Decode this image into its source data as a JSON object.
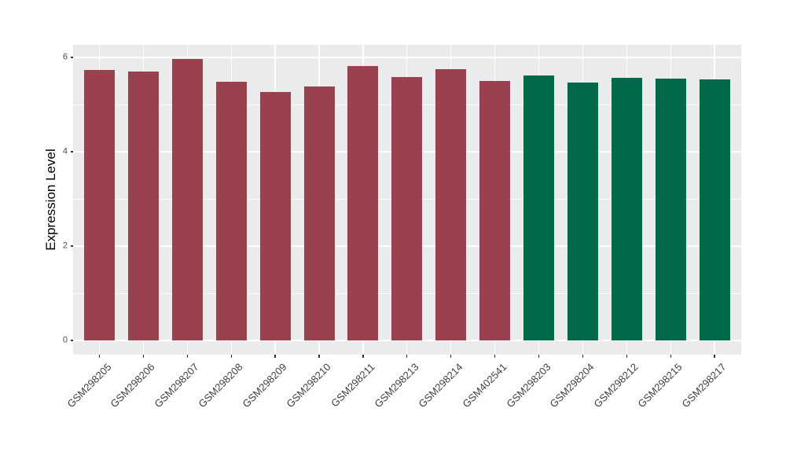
{
  "figure": {
    "background": "#FFFFFF"
  },
  "chart_data": {
    "type": "bar",
    "title": "",
    "xlabel": "",
    "ylabel": "Expression Level",
    "ylim": [
      0,
      6.27
    ],
    "yticks": [
      0,
      2,
      4,
      6
    ],
    "minor_yticks": [
      1,
      3,
      5
    ],
    "grid": true,
    "legend_position": "none",
    "panel_background": "#EBEBEB",
    "gridline_color": "#FFFFFF",
    "axis_text_color": "#4D4D4D",
    "axis_title_color": "#000000",
    "tick_mark_color": "#333333",
    "group_colors": {
      "maroon_group": "#9A4150",
      "green_group": "#016849"
    },
    "categories": [
      "GSM298205",
      "GSM298206",
      "GSM298207",
      "GSM298208",
      "GSM298209",
      "GSM298210",
      "GSM298211",
      "GSM298213",
      "GSM298214",
      "GSM402541",
      "GSM298203",
      "GSM298204",
      "GSM298212",
      "GSM298215",
      "GSM298217"
    ],
    "values": [
      5.73,
      5.7,
      5.97,
      5.49,
      5.27,
      5.38,
      5.82,
      5.58,
      5.75,
      5.5,
      5.62,
      5.47,
      5.57,
      5.55,
      5.53
    ],
    "bar_colors": [
      "#9A4150",
      "#9A4150",
      "#9A4150",
      "#9A4150",
      "#9A4150",
      "#9A4150",
      "#9A4150",
      "#9A4150",
      "#9A4150",
      "#9A4150",
      "#016849",
      "#016849",
      "#016849",
      "#016849",
      "#016849"
    ]
  }
}
